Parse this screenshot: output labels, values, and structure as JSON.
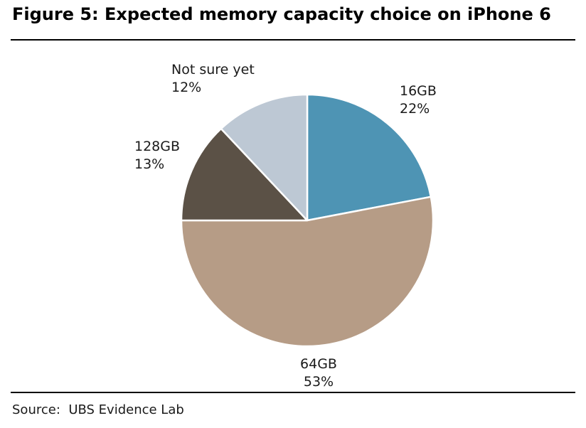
{
  "header": {
    "title": "Figure 5: Expected memory capacity choice on iPhone 6"
  },
  "footer": {
    "source": "Source:  UBS Evidence Lab"
  },
  "chart_data": {
    "type": "pie",
    "slices": [
      {
        "name": "16GB",
        "value": 22,
        "value_label": "22%",
        "color": "#4e94b4"
      },
      {
        "name": "64GB",
        "value": 53,
        "value_label": "53%",
        "color": "#b69c86"
      },
      {
        "name": "128GB",
        "value": 13,
        "value_label": "13%",
        "color": "#5b5146"
      },
      {
        "name": "Not sure yet",
        "value": 12,
        "value_label": "12%",
        "color": "#bdc8d4"
      }
    ],
    "start": "12 o'clock",
    "direction": "clockwise",
    "legend": "none"
  }
}
